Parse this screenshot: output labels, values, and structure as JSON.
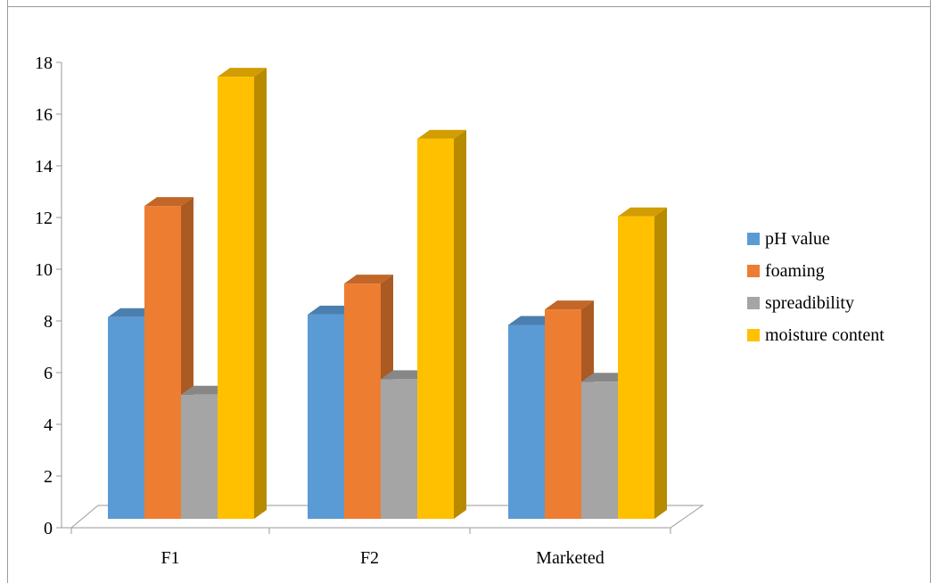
{
  "chart_data": {
    "type": "bar",
    "categories": [
      "F1",
      "F2",
      "Marketed"
    ],
    "series": [
      {
        "name": "pH value",
        "values": [
          7.8,
          7.9,
          7.5
        ]
      },
      {
        "name": "foaming",
        "values": [
          12.1,
          9.1,
          8.1
        ]
      },
      {
        "name": "spreadibility",
        "values": [
          4.8,
          5.4,
          5.3
        ]
      },
      {
        "name": "moisture content",
        "values": [
          17.1,
          14.7,
          11.7
        ]
      }
    ],
    "ylim": [
      0,
      18
    ],
    "yticks": [
      "0",
      "2",
      "4",
      "6",
      "8",
      "10",
      "12",
      "14",
      "16",
      "18"
    ],
    "legend_position": "right",
    "grid": false,
    "colors": {
      "pH value": "#5b9bd5",
      "foaming": "#ed7d31",
      "spreadibility": "#a5a5a5",
      "moisture content": "#ffc000"
    }
  }
}
